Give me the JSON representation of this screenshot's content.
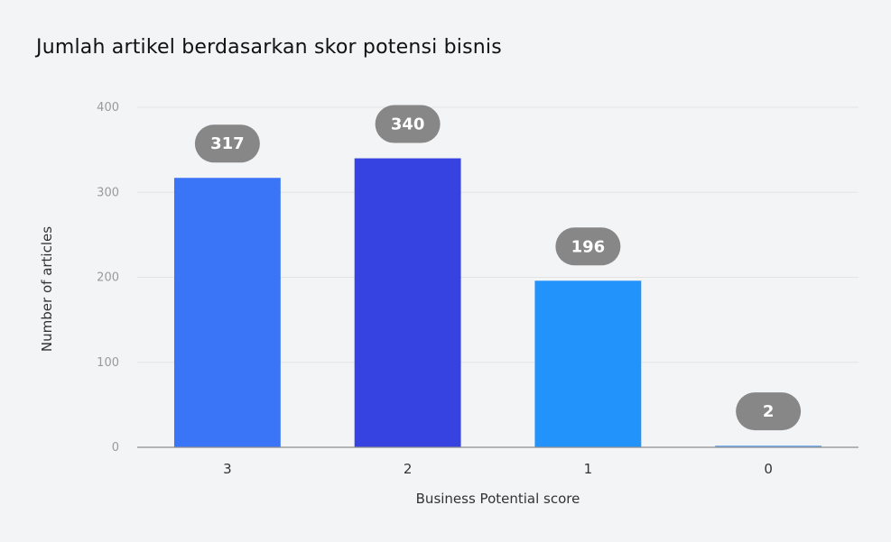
{
  "chart_data": {
    "type": "bar",
    "title": "Jumlah artikel berdasarkan skor potensi bisnis",
    "xlabel": "Business Potential score",
    "ylabel": "Number of articles",
    "categories": [
      "3",
      "2",
      "1",
      "0"
    ],
    "values": [
      317,
      340,
      196,
      2
    ],
    "data_labels": [
      "317",
      "340",
      "196",
      "2"
    ],
    "y_ticks": [
      "0",
      "100",
      "200",
      "300",
      "400"
    ],
    "ylim": [
      0,
      400
    ],
    "grid": true,
    "legend": "none",
    "colors": {
      "bars": [
        "#3a74f7",
        "#3643e0",
        "#2393fc",
        "#6aa8ec"
      ],
      "label_bubble": "#878787",
      "grid": "#e3e3e3",
      "baseline": "#8e8e8e"
    }
  }
}
